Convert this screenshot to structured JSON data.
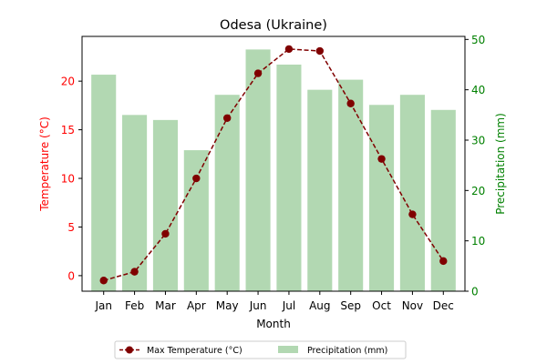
{
  "chart_data": {
    "type": "bar",
    "title": "Odesa (Ukraine)",
    "xlabel": "Month",
    "ylabel_left": "Temperature (°C)",
    "ylabel_right": "Precipitation (mm)",
    "categories": [
      "Jan",
      "Feb",
      "Mar",
      "Apr",
      "May",
      "Jun",
      "Jul",
      "Aug",
      "Sep",
      "Oct",
      "Nov",
      "Dec"
    ],
    "y_left_range": [
      -1.6,
      24.6
    ],
    "y_left_ticks": [
      0,
      5,
      10,
      15,
      20
    ],
    "y_right_range": [
      0,
      50.6
    ],
    "y_right_ticks": [
      0,
      10,
      20,
      30,
      40,
      50
    ],
    "series": [
      {
        "name": "Max Temperature (°C)",
        "type": "line",
        "axis": "left",
        "color": "#800000",
        "values": [
          -0.5,
          0.4,
          4.3,
          10.0,
          16.2,
          20.8,
          23.3,
          23.1,
          17.7,
          12.0,
          6.3,
          1.5
        ]
      },
      {
        "name": "Precipitation (mm)",
        "type": "bar",
        "axis": "right",
        "color": "#b2d8b2",
        "values": [
          43,
          35,
          34,
          28,
          39,
          48,
          45,
          40,
          42,
          37,
          39,
          36
        ]
      }
    ],
    "left_axis_color": "#ff0000",
    "right_axis_color": "#008000",
    "legend_position": "bottom-center",
    "grid": false
  }
}
